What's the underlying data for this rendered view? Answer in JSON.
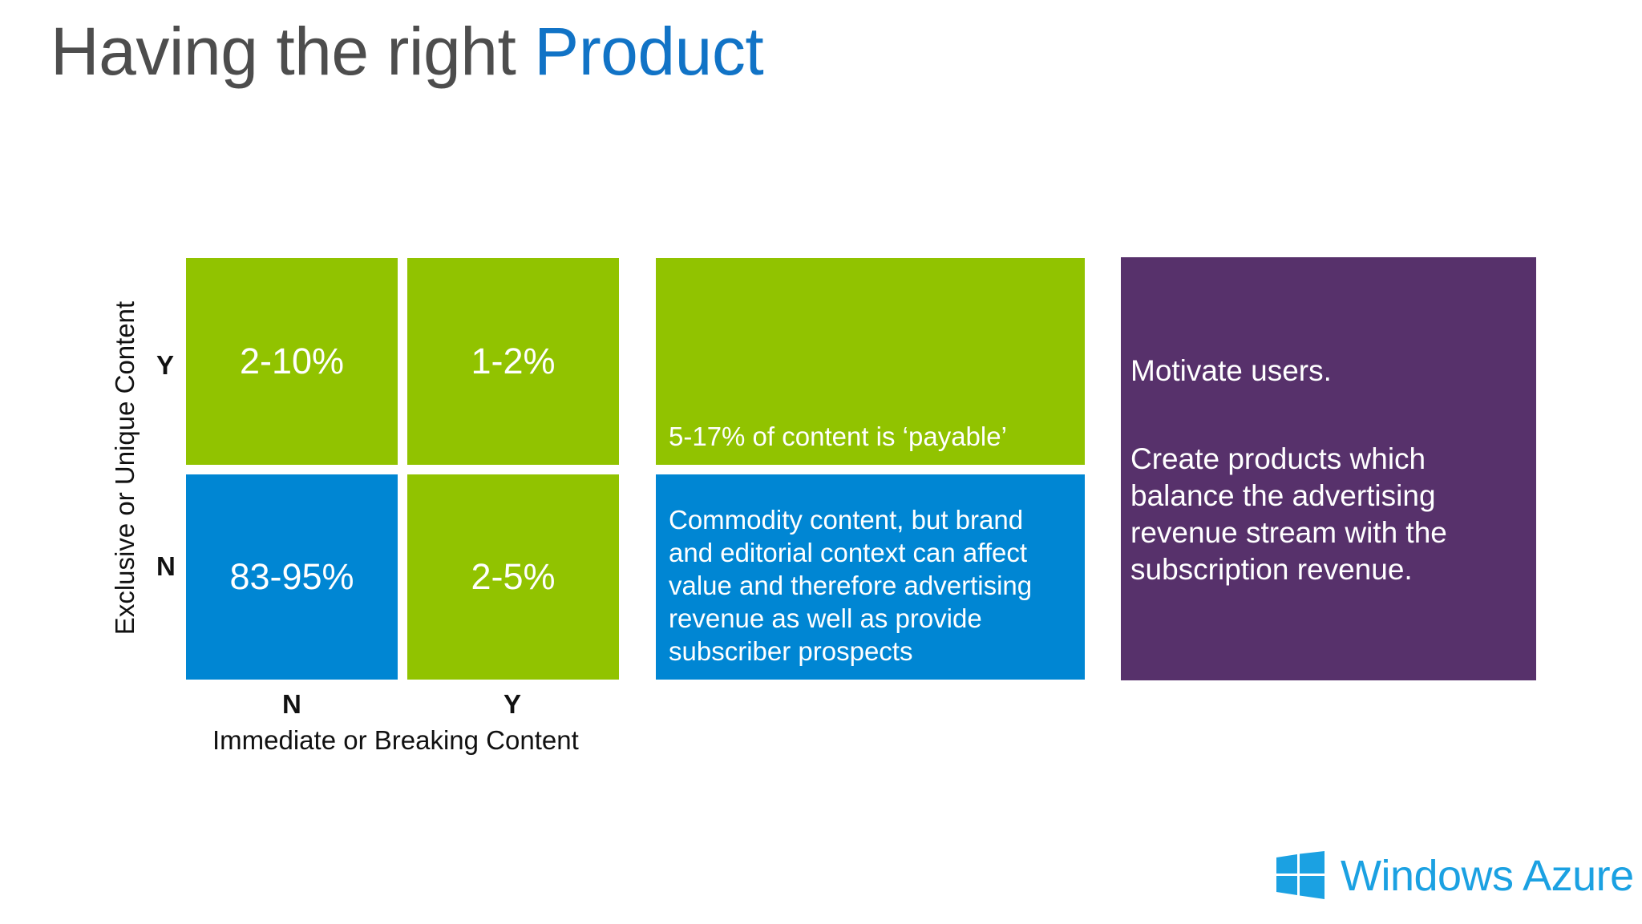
{
  "title": {
    "prefix": "Having the right",
    "accent": "Product"
  },
  "matrix": {
    "y_axis_label": "Exclusive or Unique Content",
    "x_axis_label": "Immediate or Breaking Content",
    "row_labels": [
      "Y",
      "N"
    ],
    "col_labels": [
      "N",
      "Y"
    ],
    "cells": {
      "top_left": "2-10%",
      "top_right": "1-2%",
      "bottom_left": "83-95%",
      "bottom_right": "2-5%"
    }
  },
  "green_box": {
    "text": "5-17% of content is ‘payable’"
  },
  "blue_box": {
    "lines": [
      "Commodity content, but brand",
      "and editorial context can affect",
      "value and therefore advertising",
      "revenue as well as provide",
      "subscriber prospects"
    ]
  },
  "purple_box": {
    "heading": "Motivate users.",
    "lines": [
      "Create products which",
      "balance the advertising",
      "revenue stream with the",
      "subscription revenue."
    ]
  },
  "logo": {
    "text": "Windows Azure",
    "icon": "windows-logo-icon"
  },
  "colors": {
    "green": "#91c300",
    "blue": "#0086d3",
    "purple": "#57316b",
    "title_accent": "#1173c6",
    "logo": "#1ba1e2"
  }
}
